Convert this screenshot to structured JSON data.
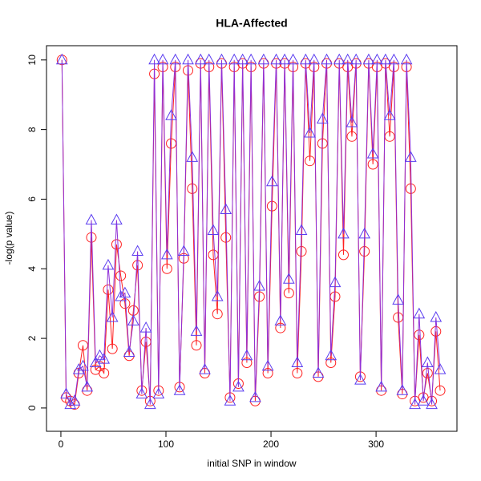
{
  "chart_data": {
    "type": "scatter-line",
    "title": "HLA-Affected",
    "x_label": "initial SNP in window",
    "y_label": "-log(p value)",
    "x": [
      1,
      5,
      9,
      13,
      17,
      21,
      25,
      29,
      33,
      37,
      41,
      45,
      49,
      53,
      57,
      61,
      65,
      69,
      73,
      77,
      81,
      85,
      89,
      93,
      97,
      101,
      105,
      109,
      113,
      117,
      121,
      125,
      129,
      133,
      137,
      141,
      145,
      149,
      153,
      157,
      161,
      165,
      169,
      173,
      177,
      181,
      185,
      189,
      193,
      197,
      201,
      205,
      209,
      213,
      217,
      221,
      225,
      229,
      233,
      237,
      241,
      245,
      249,
      253,
      257,
      261,
      265,
      269,
      273,
      277,
      281,
      285,
      289,
      293,
      297,
      301,
      305,
      309,
      313,
      317,
      321,
      325,
      329,
      333,
      337,
      341,
      345,
      349,
      353,
      357,
      361
    ],
    "series": [
      {
        "color": "#ff2020",
        "marker": "circle",
        "values": [
          10,
          0.3,
          0.2,
          0.1,
          1.0,
          1.8,
          0.5,
          4.9,
          1.1,
          1.2,
          1.0,
          3.4,
          1.7,
          4.7,
          3.8,
          3.0,
          1.5,
          2.8,
          4.1,
          0.5,
          1.9,
          0.2,
          9.6,
          0.5,
          9.8,
          4.0,
          7.6,
          9.8,
          0.6,
          4.3,
          9.7,
          6.3,
          1.8,
          9.9,
          1.0,
          9.8,
          4.4,
          2.7,
          9.9,
          4.9,
          0.3,
          9.8,
          0.7,
          9.9,
          1.3,
          9.8,
          0.2,
          3.2,
          9.9,
          1.0,
          5.8,
          9.9,
          2.3,
          9.9,
          3.3,
          9.8,
          1.0,
          4.5,
          9.9,
          7.1,
          9.8,
          0.9,
          7.6,
          9.9,
          1.3,
          3.2,
          9.9,
          4.4,
          9.8,
          7.8,
          9.9,
          0.9,
          4.5,
          9.9,
          7.0,
          9.8,
          0.5,
          9.9,
          7.8,
          9.8,
          2.6,
          0.4,
          9.8,
          6.3,
          0.2,
          2.1,
          0.3,
          1.0,
          0.2,
          2.2,
          0.5
        ]
      },
      {
        "color": "#5a3cf0",
        "line_color": "#9030d8",
        "marker": "triangle",
        "values": [
          10,
          0.4,
          0.1,
          0.2,
          1.1,
          1.2,
          0.6,
          5.4,
          1.3,
          1.5,
          1.4,
          4.1,
          2.6,
          5.4,
          3.2,
          3.3,
          1.6,
          2.5,
          4.5,
          0.4,
          2.3,
          0.1,
          10,
          0.4,
          10,
          4.4,
          8.4,
          10,
          0.5,
          4.5,
          10,
          7.2,
          2.2,
          10,
          1.1,
          10,
          5.1,
          3.2,
          10,
          5.7,
          0.2,
          10,
          0.6,
          10,
          1.5,
          10,
          0.3,
          3.5,
          10,
          1.2,
          6.5,
          10,
          2.5,
          10,
          3.7,
          10,
          1.3,
          5.1,
          10,
          7.9,
          10,
          1.0,
          8.3,
          10,
          1.5,
          3.6,
          10,
          5.0,
          10,
          8.2,
          10,
          0.8,
          5.0,
          10,
          7.3,
          10,
          0.6,
          10,
          8.4,
          10,
          3.1,
          0.5,
          10,
          7.2,
          0.1,
          2.7,
          0.2,
          1.3,
          0.1,
          2.6,
          1.1
        ]
      }
    ],
    "xlim": [
      -13.7,
      377
    ],
    "ylim": [
      -0.67,
      10.41
    ],
    "xticks": [
      0,
      100,
      200,
      300
    ],
    "yticks": [
      0,
      2,
      4,
      6,
      8,
      10
    ]
  }
}
